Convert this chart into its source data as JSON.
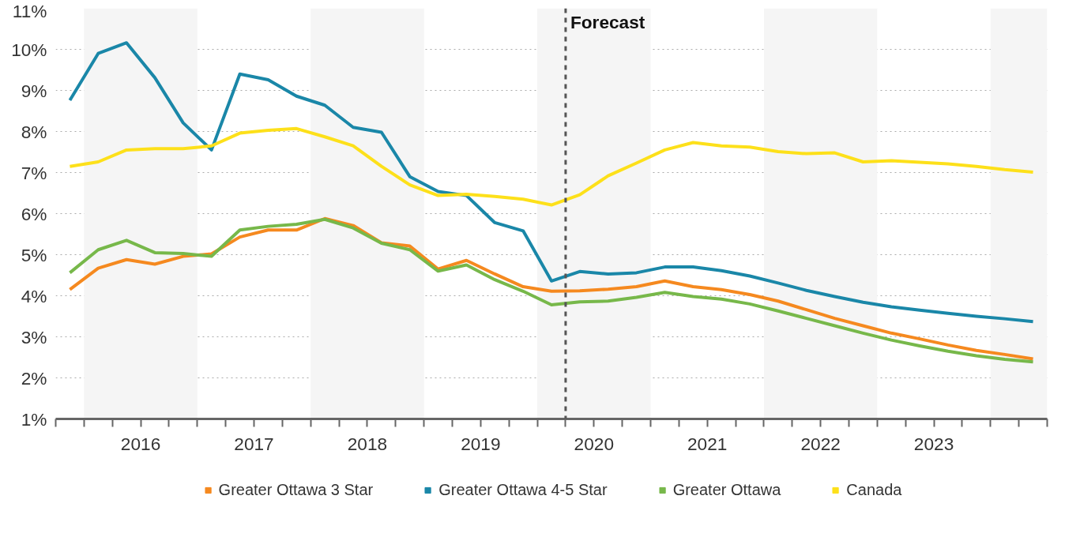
{
  "chart_data": {
    "type": "line",
    "x": [
      2015.875,
      2016.125,
      2016.375,
      2016.625,
      2016.875,
      2017.125,
      2017.375,
      2017.625,
      2017.875,
      2018.125,
      2018.375,
      2018.625,
      2018.875,
      2019.125,
      2019.375,
      2019.625,
      2019.875,
      2020.125,
      2020.375,
      2020.625,
      2020.875,
      2021.125,
      2021.375,
      2021.625,
      2021.875,
      2022.125,
      2022.375,
      2022.625,
      2022.875,
      2023.125,
      2023.375,
      2023.625,
      2023.875,
      2024.125,
      2024.375
    ],
    "series": [
      {
        "name": "Greater Ottawa 3 Star",
        "color": "#f5891f",
        "values": [
          4.15,
          4.67,
          4.88,
          4.77,
          4.96,
          5.02,
          5.43,
          5.6,
          5.6,
          5.88,
          5.71,
          5.29,
          5.21,
          4.65,
          4.86,
          4.53,
          4.22,
          4.11,
          4.12,
          4.16,
          4.22,
          4.36,
          4.22,
          4.15,
          4.03,
          3.87,
          3.66,
          3.45,
          3.27,
          3.09,
          2.95,
          2.8,
          2.67,
          2.57,
          2.46
        ]
      },
      {
        "name": "Greater Ottawa 4-5 Star",
        "color": "#1a87a8",
        "values": [
          8.76,
          9.9,
          10.16,
          9.31,
          8.21,
          7.55,
          9.4,
          9.26,
          8.86,
          8.64,
          8.1,
          7.98,
          6.9,
          6.54,
          6.44,
          5.78,
          5.58,
          4.36,
          4.59,
          4.53,
          4.56,
          4.7,
          4.7,
          4.61,
          4.48,
          4.31,
          4.13,
          3.98,
          3.84,
          3.73,
          3.65,
          3.57,
          3.5,
          3.44,
          3.37
        ]
      },
      {
        "name": "Greater Ottawa",
        "color": "#77b84a",
        "values": [
          4.56,
          5.12,
          5.35,
          5.05,
          5.03,
          4.96,
          5.6,
          5.69,
          5.74,
          5.86,
          5.65,
          5.28,
          5.12,
          4.6,
          4.75,
          4.39,
          4.11,
          3.78,
          3.85,
          3.87,
          3.96,
          4.08,
          3.98,
          3.92,
          3.8,
          3.63,
          3.45,
          3.27,
          3.09,
          2.92,
          2.78,
          2.65,
          2.54,
          2.45,
          2.39
        ]
      },
      {
        "name": "Canada",
        "color": "#fde01a",
        "values": [
          7.15,
          7.26,
          7.55,
          7.58,
          7.58,
          7.65,
          7.96,
          8.03,
          8.07,
          7.87,
          7.65,
          7.15,
          6.7,
          6.44,
          6.47,
          6.42,
          6.35,
          6.21,
          6.46,
          6.92,
          7.23,
          7.55,
          7.73,
          7.65,
          7.62,
          7.51,
          7.46,
          7.48,
          7.26,
          7.29,
          7.25,
          7.21,
          7.15,
          7.07,
          7.01
        ]
      }
    ],
    "xlim": [
      2015.75,
      2024.5
    ],
    "xticks": [
      {
        "value": 2015.75,
        "label": null
      },
      {
        "value": 2016,
        "label": null
      },
      {
        "value": 2016.25,
        "label": null
      },
      {
        "value": 2016.5,
        "label": "2016"
      },
      {
        "value": 2016.75,
        "label": null
      },
      {
        "value": 2017,
        "label": null
      },
      {
        "value": 2017.25,
        "label": null
      },
      {
        "value": 2017.5,
        "label": "2017"
      },
      {
        "value": 2017.75,
        "label": null
      },
      {
        "value": 2018,
        "label": null
      },
      {
        "value": 2018.25,
        "label": null
      },
      {
        "value": 2018.5,
        "label": "2018"
      },
      {
        "value": 2018.75,
        "label": null
      },
      {
        "value": 2019,
        "label": null
      },
      {
        "value": 2019.25,
        "label": null
      },
      {
        "value": 2019.5,
        "label": "2019"
      },
      {
        "value": 2019.75,
        "label": null
      },
      {
        "value": 2020,
        "label": null
      },
      {
        "value": 2020.25,
        "label": null
      },
      {
        "value": 2020.5,
        "label": "2020"
      },
      {
        "value": 2020.75,
        "label": null
      },
      {
        "value": 2021,
        "label": null
      },
      {
        "value": 2021.25,
        "label": null
      },
      {
        "value": 2021.5,
        "label": "2021"
      },
      {
        "value": 2021.75,
        "label": null
      },
      {
        "value": 2022,
        "label": null
      },
      {
        "value": 2022.25,
        "label": null
      },
      {
        "value": 2022.5,
        "label": "2022"
      },
      {
        "value": 2022.75,
        "label": null
      },
      {
        "value": 2023,
        "label": null
      },
      {
        "value": 2023.25,
        "label": null
      },
      {
        "value": 2023.5,
        "label": "2023"
      },
      {
        "value": 2023.75,
        "label": null
      },
      {
        "value": 2024,
        "label": null
      },
      {
        "value": 2024.25,
        "label": null
      },
      {
        "value": 2024.5,
        "label": null
      }
    ],
    "ylim": [
      1,
      11
    ],
    "yticks": [
      {
        "value": 1,
        "label": "1%"
      },
      {
        "value": 2,
        "label": "2%"
      },
      {
        "value": 3,
        "label": "3%"
      },
      {
        "value": 4,
        "label": "4%"
      },
      {
        "value": 5,
        "label": "5%"
      },
      {
        "value": 6,
        "label": "6%"
      },
      {
        "value": 7,
        "label": "7%"
      },
      {
        "value": 8,
        "label": "8%"
      },
      {
        "value": 9,
        "label": "9%"
      },
      {
        "value": 10,
        "label": "10%"
      },
      {
        "value": 11,
        "label": "11%"
      }
    ],
    "grid": "y",
    "legend": "bottom",
    "marker": "none",
    "line_style": "solid",
    "ref_lines": [
      {
        "axis": "x",
        "value": 2020.25,
        "label": "Forecast",
        "color": "#555555",
        "line_style": "dashed"
      }
    ],
    "bands": [
      {
        "axis": "x",
        "from": 2016,
        "to": 2017,
        "label": null,
        "color": "#f5f5f5"
      },
      {
        "axis": "x",
        "from": 2018,
        "to": 2019,
        "label": null,
        "color": "#f5f5f5"
      },
      {
        "axis": "x",
        "from": 2020,
        "to": 2021,
        "label": null,
        "color": "#f5f5f5"
      },
      {
        "axis": "x",
        "from": 2022,
        "to": 2023,
        "label": null,
        "color": "#f5f5f5"
      },
      {
        "axis": "x",
        "from": 2024,
        "to": 2024.5,
        "label": null,
        "color": "#f5f5f5"
      }
    ]
  }
}
